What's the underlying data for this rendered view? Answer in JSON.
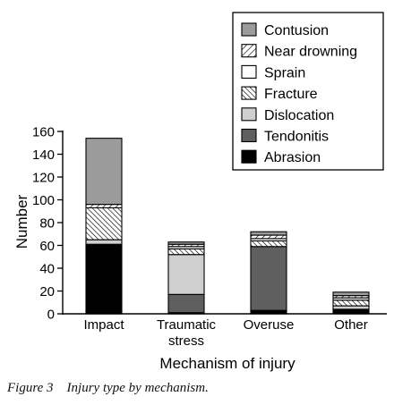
{
  "chart_data": {
    "type": "bar",
    "stacked": true,
    "title": "",
    "xlabel": "Mechanism of injury",
    "ylabel": "Number",
    "ylim": [
      0,
      160
    ],
    "yticks": [
      0,
      20,
      40,
      60,
      80,
      100,
      120,
      140,
      160
    ],
    "grid": false,
    "legend_position": "top-right",
    "categories": [
      "Impact",
      "Traumatic\nstress",
      "Overuse",
      "Other"
    ],
    "series": [
      {
        "name": "Abrasion",
        "fill": "solid",
        "color": "#000000",
        "values": [
          61,
          1,
          3,
          4
        ]
      },
      {
        "name": "Tendonitis",
        "fill": "solid",
        "color": "#5f5f5f",
        "values": [
          0,
          16,
          56,
          0
        ]
      },
      {
        "name": "Dislocation",
        "fill": "solid",
        "color": "#cfcfcf",
        "values": [
          4,
          35,
          0,
          3
        ]
      },
      {
        "name": "Fracture",
        "fill": "backhatch",
        "color": "#ffffff",
        "values": [
          28,
          5,
          5,
          5
        ]
      },
      {
        "name": "Sprain",
        "fill": "solid",
        "color": "#ffffff",
        "values": [
          0,
          2,
          2,
          2
        ]
      },
      {
        "name": "Near drowning",
        "fill": "hatch",
        "color": "#ffffff",
        "values": [
          3,
          2,
          3,
          2
        ]
      },
      {
        "name": "Contusion",
        "fill": "solid",
        "color": "#9b9b9b",
        "values": [
          58,
          2,
          3,
          3
        ]
      }
    ]
  },
  "caption": {
    "label": "Figure 3",
    "text": "Injury type by mechanism."
  }
}
